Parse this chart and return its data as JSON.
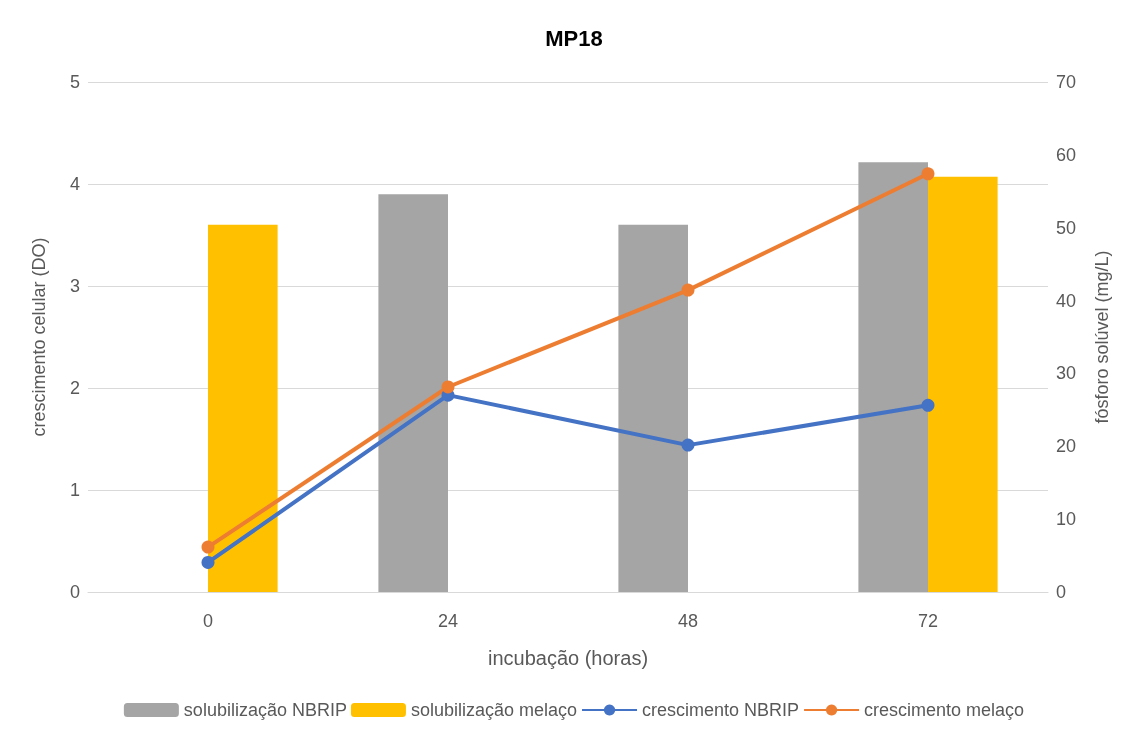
{
  "chart_data": {
    "type": "bar",
    "title": "MP18",
    "xlabel": "incubação (horas)",
    "ylabel": "crescimento celular (DO)",
    "y2label": "fósforo solúvel (mg/L)",
    "categories": [
      "0",
      "24",
      "48",
      "72"
    ],
    "series": [
      {
        "name": "solubilização NBRIP",
        "axis": "y2",
        "color": "#a5a5a5",
        "values": [
          null,
          54.6,
          50.4,
          59.0
        ]
      },
      {
        "name": "solubilização melaço",
        "axis": "y2",
        "color": "#ffc000",
        "values": [
          50.4,
          null,
          null,
          57.0
        ]
      },
      {
        "name": "crescimento NBRIP",
        "type": "line",
        "color": "#4472c4",
        "values": [
          0.29,
          1.93,
          1.44,
          1.83
        ]
      },
      {
        "name": "crescimento melaço",
        "type": "line",
        "color": "#ed7d31",
        "values": [
          0.44,
          2.01,
          2.96,
          4.1
        ]
      }
    ],
    "ylim": [
      0,
      5
    ],
    "yticks": [
      0,
      1,
      2,
      3,
      4,
      5
    ],
    "y2lim": [
      0,
      70
    ],
    "y2ticks": [
      0,
      10,
      20,
      30,
      40,
      50,
      60,
      70
    ],
    "grid": "y",
    "legend": "bottom",
    "marker": "circle",
    "line_style": "solid"
  }
}
